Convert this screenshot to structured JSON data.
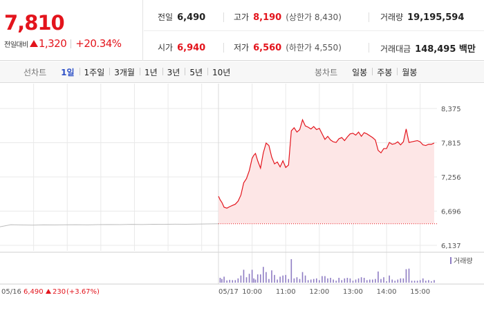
{
  "quote": {
    "price": "7,810",
    "change_label": "전일대비",
    "change_amount": "1,320",
    "change_percent": "+20.34%"
  },
  "stats": {
    "prev_close_label": "전일",
    "prev_close": "6,490",
    "high_label": "고가",
    "high": "8,190",
    "upper_limit": "(상한가 8,430)",
    "volume_label": "거래량",
    "volume": "19,195,594",
    "open_label": "시가",
    "open": "6,940",
    "low_label": "저가",
    "low": "6,560",
    "lower_limit": "(하한가 4,550)",
    "amount_label": "거래대금",
    "amount": "148,495 백만"
  },
  "tabs": {
    "line_group_label": "선차트",
    "line_tabs": [
      "1일",
      "1주일",
      "3개월",
      "1년",
      "3년",
      "5년",
      "10년"
    ],
    "active_line_tab": 0,
    "candle_group_label": "봉차트",
    "candle_tabs": [
      "일봉",
      "주봉",
      "월봉"
    ]
  },
  "footer": {
    "prev_date": "05/16",
    "prev_price": "6,490",
    "prev_change": "230",
    "prev_pct": "(+3.67%)",
    "volume_legend": "거래량"
  },
  "colors": {
    "up": "#e3141c",
    "line": "#e3141c",
    "fill": "#fde6e6",
    "prev_line": "#bcbcbc",
    "volume": "#8e7cc3",
    "grid": "#e9e9e9"
  },
  "chart_data": {
    "type": "line",
    "ylim": [
      6137,
      8375
    ],
    "yticks": [
      "8,375",
      "7,815",
      "7,256",
      "6,696",
      "6,137"
    ],
    "ytick_values": [
      8375,
      7815,
      7256,
      6696,
      6137
    ],
    "baseline": 6490,
    "prev_day": {
      "date": "05/16",
      "x": [
        0,
        5,
        10,
        15,
        20,
        25,
        30,
        35,
        40,
        45,
        50,
        55,
        60,
        65,
        70,
        75,
        80,
        85,
        90,
        95,
        100
      ],
      "y": [
        6440,
        6475,
        6470,
        6468,
        6472,
        6470,
        6473,
        6475,
        6472,
        6476,
        6478,
        6476,
        6480,
        6478,
        6482,
        6480,
        6483,
        6482,
        6485,
        6487,
        6490
      ]
    },
    "intraday": {
      "date": "05/17",
      "xticks": [
        "05/17",
        "10:00",
        "11:00",
        "12:00",
        "13:00",
        "14:00",
        "15:00"
      ],
      "xtick_minutes": [
        0,
        60,
        120,
        180,
        240,
        300,
        360
      ],
      "x": [
        0,
        3,
        6,
        10,
        15,
        20,
        25,
        30,
        35,
        40,
        45,
        50,
        55,
        60,
        63,
        66,
        70,
        75,
        80,
        85,
        90,
        95,
        100,
        105,
        110,
        115,
        120,
        125,
        130,
        135,
        140,
        145,
        150,
        155,
        160,
        165,
        170,
        175,
        180,
        185,
        190,
        195,
        200,
        205,
        210,
        215,
        220,
        225,
        230,
        235,
        240,
        245,
        250,
        255,
        260,
        265,
        270,
        275,
        280,
        285,
        290,
        295,
        300,
        305,
        310,
        315,
        320,
        325,
        330,
        335,
        340,
        345,
        350,
        355,
        360,
        365,
        370,
        375,
        380,
        385
      ],
      "y": [
        6940,
        6880,
        6840,
        6760,
        6745,
        6770,
        6790,
        6810,
        6860,
        6960,
        7160,
        7230,
        7360,
        7560,
        7610,
        7640,
        7520,
        7400,
        7650,
        7810,
        7770,
        7580,
        7470,
        7500,
        7420,
        7520,
        7410,
        7450,
        8010,
        8060,
        7990,
        8030,
        8190,
        8090,
        8070,
        8040,
        8080,
        8030,
        8050,
        7960,
        7870,
        7920,
        7860,
        7830,
        7820,
        7880,
        7900,
        7850,
        7910,
        7960,
        7970,
        7940,
        7990,
        7920,
        7980,
        7960,
        7930,
        7900,
        7860,
        7690,
        7650,
        7720,
        7720,
        7820,
        7790,
        7800,
        7830,
        7780,
        7830,
        8040,
        7820,
        7830,
        7840,
        7850,
        7830,
        7780,
        7770,
        7790,
        7790,
        7810
      ]
    }
  }
}
